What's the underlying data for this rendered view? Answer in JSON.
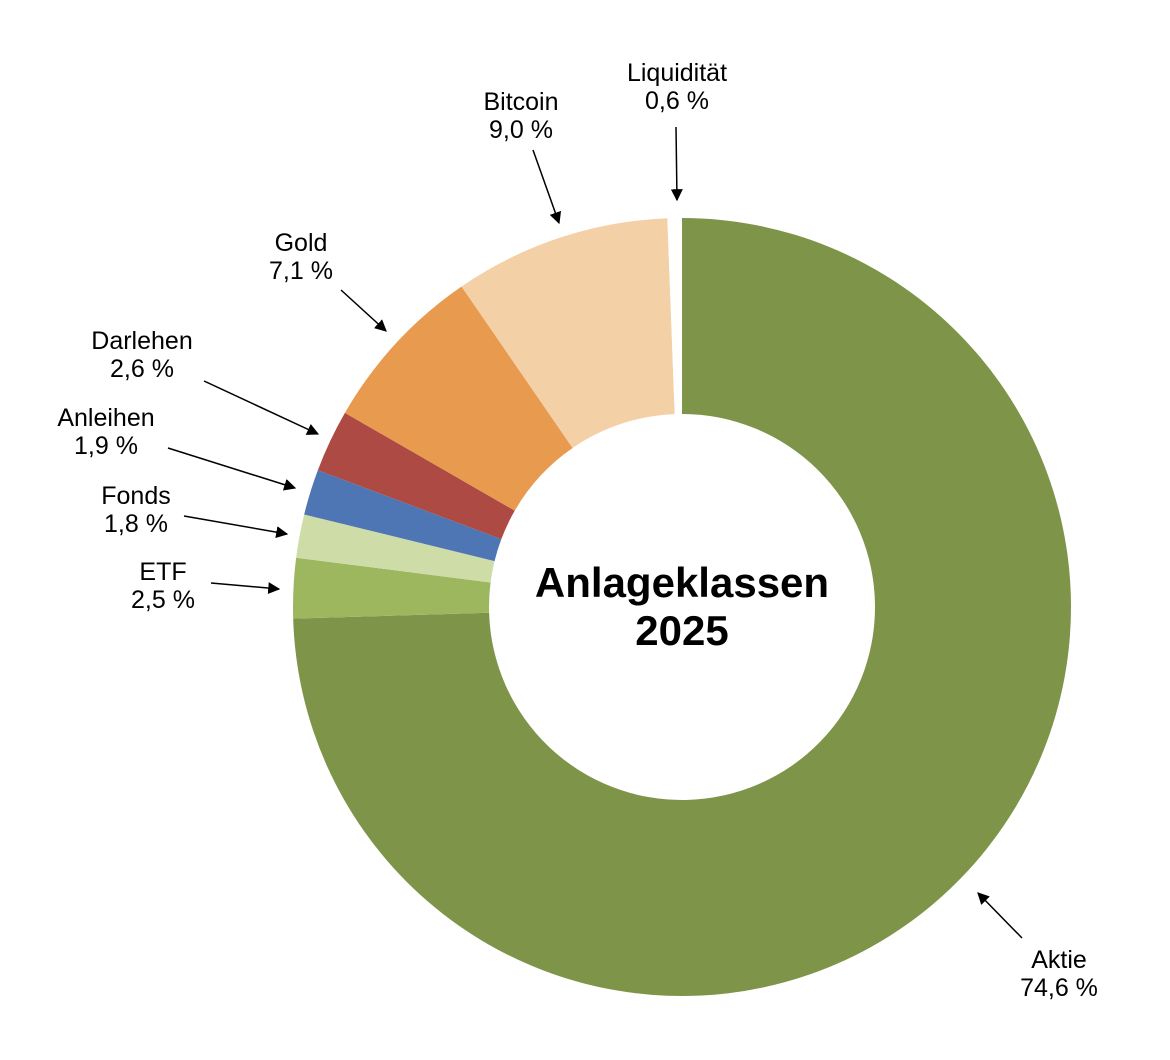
{
  "chart_data": {
    "type": "pie",
    "subtype": "donut",
    "title": "Anlageklassen 2025",
    "center_label_lines": [
      "Anlageklassen",
      "2025"
    ],
    "legend": "none",
    "direction": "clockwise",
    "start_angle_deg": 0,
    "inner_radius_ratio": 0.5,
    "label_style": "external callouts with arrows, name above percent",
    "segments": [
      {
        "name": "Aktie",
        "value": 74.6,
        "pct_label": "74,6 %",
        "color": "#7E9549"
      },
      {
        "name": "ETF",
        "value": 2.5,
        "pct_label": "2,5 %",
        "color": "#9DB75F"
      },
      {
        "name": "Fonds",
        "value": 1.8,
        "pct_label": "1,8 %",
        "color": "#CEDCA8"
      },
      {
        "name": "Anleihen",
        "value": 1.9,
        "pct_label": "1,9 %",
        "color": "#4E75B4"
      },
      {
        "name": "Darlehen",
        "value": 2.6,
        "pct_label": "2,6 %",
        "color": "#AC4A43"
      },
      {
        "name": "Gold",
        "value": 7.1,
        "pct_label": "7,1 %",
        "color": "#E89A4F"
      },
      {
        "name": "Bitcoin",
        "value": 9.0,
        "pct_label": "9,0 %",
        "color": "#F4D0A7"
      },
      {
        "name": "Liquidität",
        "value": 0.6,
        "pct_label": "0,6 %",
        "color": "#FFFFFF"
      }
    ]
  }
}
